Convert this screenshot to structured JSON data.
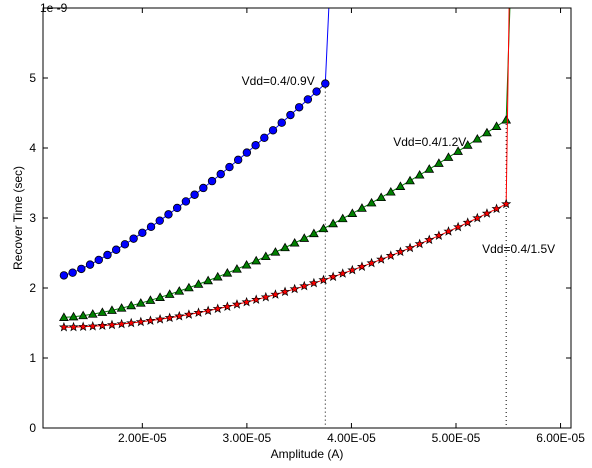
{
  "chart_data": {
    "type": "line",
    "title": "",
    "xlabel": "Amplitude (A)",
    "ylabel": "Recover Time (sec)",
    "y_multiplier_label": "1e -9",
    "xlim": [
      1.05e-05,
      6.1e-05
    ],
    "ylim": [
      0,
      6
    ],
    "x_ticks": [
      2e-05,
      3e-05,
      4e-05,
      5e-05,
      6e-05
    ],
    "x_tick_labels": [
      "2.00E-05",
      "3.00E-05",
      "4.00E-05",
      "5.00E-05",
      "6.00E-05"
    ],
    "y_ticks": [
      0,
      1,
      2,
      3,
      4,
      5
    ],
    "y_tick_labels": [
      "0",
      "1",
      "2",
      "3",
      "4",
      "5"
    ],
    "grid": false,
    "legend": "none",
    "series": [
      {
        "name": "Vdd=0.4/0.9V",
        "color": "#0000ff",
        "marker": "circle",
        "x_start": 1.25e-05,
        "x_end": 3.75e-05,
        "n": 31,
        "y_start": 2.18,
        "y_end": 4.92,
        "curve_exp": 1.25,
        "spike_to": {
          "x": 3.79e-05,
          "y": 6.2
        },
        "drop_line_x": 3.75e-05
      },
      {
        "name": "Vdd=0.4/1.2V",
        "color": "#008000",
        "marker": "triangle",
        "x_start": 1.25e-05,
        "x_end": 5.48e-05,
        "n": 47,
        "y_start": 1.58,
        "y_end": 4.4,
        "curve_exp": 1.5,
        "spike_to": {
          "x": 5.52e-05,
          "y": 6.2
        },
        "drop_line_x": 5.48e-05
      },
      {
        "name": "Vdd=0.4/1.5V",
        "color": "#ff0000",
        "marker": "star",
        "x_start": 1.25e-05,
        "x_end": 5.48e-05,
        "n": 47,
        "y_start": 1.44,
        "y_end": 3.2,
        "curve_exp": 1.8,
        "spike_to": {
          "x": 5.51e-05,
          "y": 6.2
        },
        "drop_line_x": 5.48e-05
      }
    ],
    "annotations": [
      {
        "text": "Vdd=0.4/0.9V",
        "x": 2.95e-05,
        "y": 4.9
      },
      {
        "text": "Vdd=0.4/1.2V",
        "x": 4.4e-05,
        "y": 4.03
      },
      {
        "text": "Vdd=0.4/1.5V",
        "x": 5.25e-05,
        "y": 2.5
      }
    ]
  }
}
